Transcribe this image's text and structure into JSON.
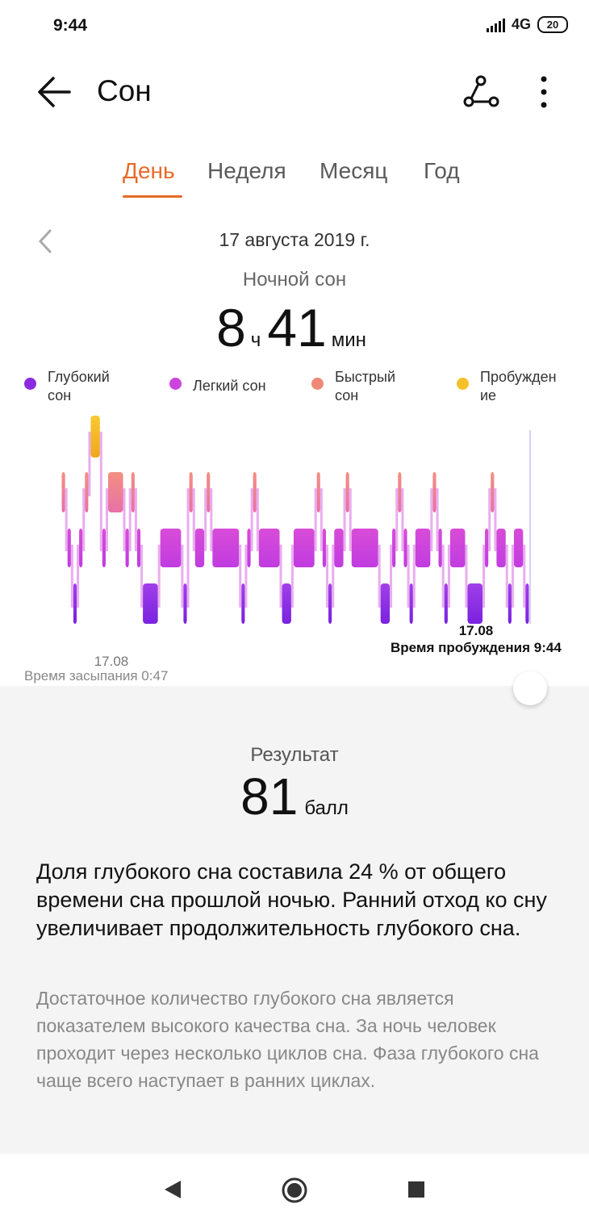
{
  "status_bar": {
    "time": "9:44",
    "network": "4G",
    "battery": "20"
  },
  "app_bar": {
    "title": "Сон",
    "icons": [
      "back-arrow-icon",
      "share-icon",
      "more-vert-icon"
    ]
  },
  "tabs": [
    {
      "label": "День",
      "active": true
    },
    {
      "label": "Неделя",
      "active": false
    },
    {
      "label": "Месяц",
      "active": false
    },
    {
      "label": "Год",
      "active": false
    }
  ],
  "date": "17 августа 2019 г.",
  "sleep_type": "Ночной сон",
  "duration": {
    "hours": "8",
    "hours_unit": "ч",
    "minutes": "41",
    "minutes_unit": "мин"
  },
  "legend": [
    {
      "label": "Глубокий сон",
      "lines": [
        "Глубокий",
        "сон"
      ],
      "color": "#8a2be2"
    },
    {
      "label": "Легкий сон",
      "lines": [
        "Легкий сон"
      ],
      "color": "#cc44dd"
    },
    {
      "label": "Быстрый сон",
      "lines": [
        "Быстрый",
        "сон"
      ],
      "color": "#f08878"
    },
    {
      "label": "Пробуждение",
      "lines": [
        "Пробужден",
        "ие"
      ],
      "color": "#f5c028"
    }
  ],
  "chart_data": {
    "type": "timeline",
    "stages": [
      "awake",
      "rem",
      "light",
      "deep"
    ],
    "start": {
      "date": "17.08",
      "label": "Время засыпания 0:47"
    },
    "end": {
      "date": "17.08",
      "label": "Время пробуждения 9:44"
    },
    "segments": [
      {
        "stage": "rem",
        "duration": 1
      },
      {
        "stage": "light",
        "duration": 1
      },
      {
        "stage": "deep",
        "duration": 1
      },
      {
        "stage": "light",
        "duration": 1
      },
      {
        "stage": "rem",
        "duration": 1
      },
      {
        "stage": "awake",
        "duration": 2
      },
      {
        "stage": "light",
        "duration": 1
      },
      {
        "stage": "rem",
        "duration": 3
      },
      {
        "stage": "light",
        "duration": 1
      },
      {
        "stage": "rem",
        "duration": 1
      },
      {
        "stage": "light",
        "duration": 1
      },
      {
        "stage": "deep",
        "duration": 3
      },
      {
        "stage": "light",
        "duration": 4
      },
      {
        "stage": "deep",
        "duration": 1
      },
      {
        "stage": "rem",
        "duration": 1
      },
      {
        "stage": "light",
        "duration": 2
      },
      {
        "stage": "rem",
        "duration": 1
      },
      {
        "stage": "light",
        "duration": 5
      },
      {
        "stage": "deep",
        "duration": 1
      },
      {
        "stage": "light",
        "duration": 1
      },
      {
        "stage": "rem",
        "duration": 1
      },
      {
        "stage": "light",
        "duration": 4
      },
      {
        "stage": "deep",
        "duration": 2
      },
      {
        "stage": "light",
        "duration": 4
      },
      {
        "stage": "rem",
        "duration": 1
      },
      {
        "stage": "light",
        "duration": 1
      },
      {
        "stage": "deep",
        "duration": 1
      },
      {
        "stage": "light",
        "duration": 2
      },
      {
        "stage": "rem",
        "duration": 1
      },
      {
        "stage": "light",
        "duration": 5
      },
      {
        "stage": "deep",
        "duration": 2
      },
      {
        "stage": "light",
        "duration": 1
      },
      {
        "stage": "rem",
        "duration": 1
      },
      {
        "stage": "light",
        "duration": 1
      },
      {
        "stage": "deep",
        "duration": 1
      },
      {
        "stage": "light",
        "duration": 3
      },
      {
        "stage": "rem",
        "duration": 1
      },
      {
        "stage": "light",
        "duration": 1
      },
      {
        "stage": "deep",
        "duration": 1
      },
      {
        "stage": "light",
        "duration": 3
      },
      {
        "stage": "deep",
        "duration": 3
      },
      {
        "stage": "light",
        "duration": 1
      },
      {
        "stage": "rem",
        "duration": 1
      },
      {
        "stage": "light",
        "duration": 2
      },
      {
        "stage": "deep",
        "duration": 1
      },
      {
        "stage": "light",
        "duration": 2
      },
      {
        "stage": "deep",
        "duration": 1
      }
    ]
  },
  "result": {
    "label": "Результат",
    "score": "81",
    "unit": "балл"
  },
  "summary": "Доля глубокого сна составила 24 % от общего времени сна прошлой ночью. Ранний отход ко сну увеличивает продолжительность глубокого сна.",
  "details": "Достаточное количество глубокого сна является показателем высокого качества сна. За ночь человек проходит через несколько циклов сна. Фаза глубокого сна чаще всего наступает в ранних циклах."
}
